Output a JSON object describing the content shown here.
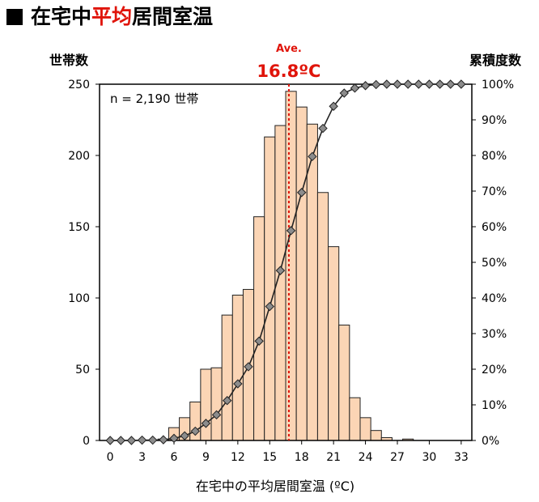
{
  "title": {
    "prefix": "在宅中",
    "highlight": "平均",
    "suffix": "居間室温"
  },
  "colors": {
    "bar_fill": "#fbd5b5",
    "bar_stroke": "#222222",
    "line": "#222222",
    "marker": "#8c8c8c",
    "average": "#e0140a",
    "title_highlight": "#e0140a"
  },
  "chart_data": {
    "type": "bar",
    "ylabel_left": "世帯数",
    "ylabel_right": "累積度数",
    "xlabel": "在宅中の平均居間室温 (ºC)",
    "annotation_n": "n = 2,190 世帯",
    "average": {
      "label": "Ave.",
      "value_label": "16.8ºC",
      "x": 16.8
    },
    "ylim_left": [
      0,
      250
    ],
    "ylim_right": [
      0,
      100
    ],
    "xlim": [
      -1,
      34
    ],
    "x_ticks": [
      0,
      3,
      6,
      9,
      12,
      15,
      18,
      21,
      24,
      27,
      30,
      33
    ],
    "y_ticks_left": [
      "0",
      "50",
      "100",
      "150",
      "200",
      "250"
    ],
    "y_ticks_right": [
      "0%",
      "10%",
      "20%",
      "30%",
      "40%",
      "50%",
      "60%",
      "70%",
      "80%",
      "90%",
      "100%"
    ],
    "bins": [
      0,
      1,
      2,
      3,
      4,
      5,
      6,
      7,
      8,
      9,
      10,
      11,
      12,
      13,
      14,
      15,
      16,
      17,
      18,
      19,
      20,
      21,
      22,
      23,
      24,
      25,
      26,
      27,
      28,
      29,
      30,
      31,
      32,
      33
    ],
    "series": [
      {
        "type": "bar",
        "values": [
          0,
          0,
          0,
          0,
          0,
          1,
          9,
          16,
          27,
          50,
          51,
          88,
          102,
          106,
          157,
          213,
          221,
          245,
          234,
          222,
          174,
          136,
          81,
          30,
          16,
          7,
          2,
          0,
          1,
          0,
          0,
          0,
          0,
          0
        ]
      },
      {
        "type": "line",
        "axis": "right",
        "values": [
          0,
          0,
          0,
          0.1,
          0.1,
          0.2,
          0.6,
          1.3,
          2.6,
          4.8,
          7.2,
          11.2,
          15.9,
          20.7,
          27.9,
          37.6,
          47.7,
          58.9,
          69.6,
          79.7,
          87.6,
          93.8,
          97.5,
          98.9,
          99.6,
          99.9,
          100,
          100,
          100,
          100,
          100,
          100,
          100,
          100
        ]
      }
    ]
  }
}
